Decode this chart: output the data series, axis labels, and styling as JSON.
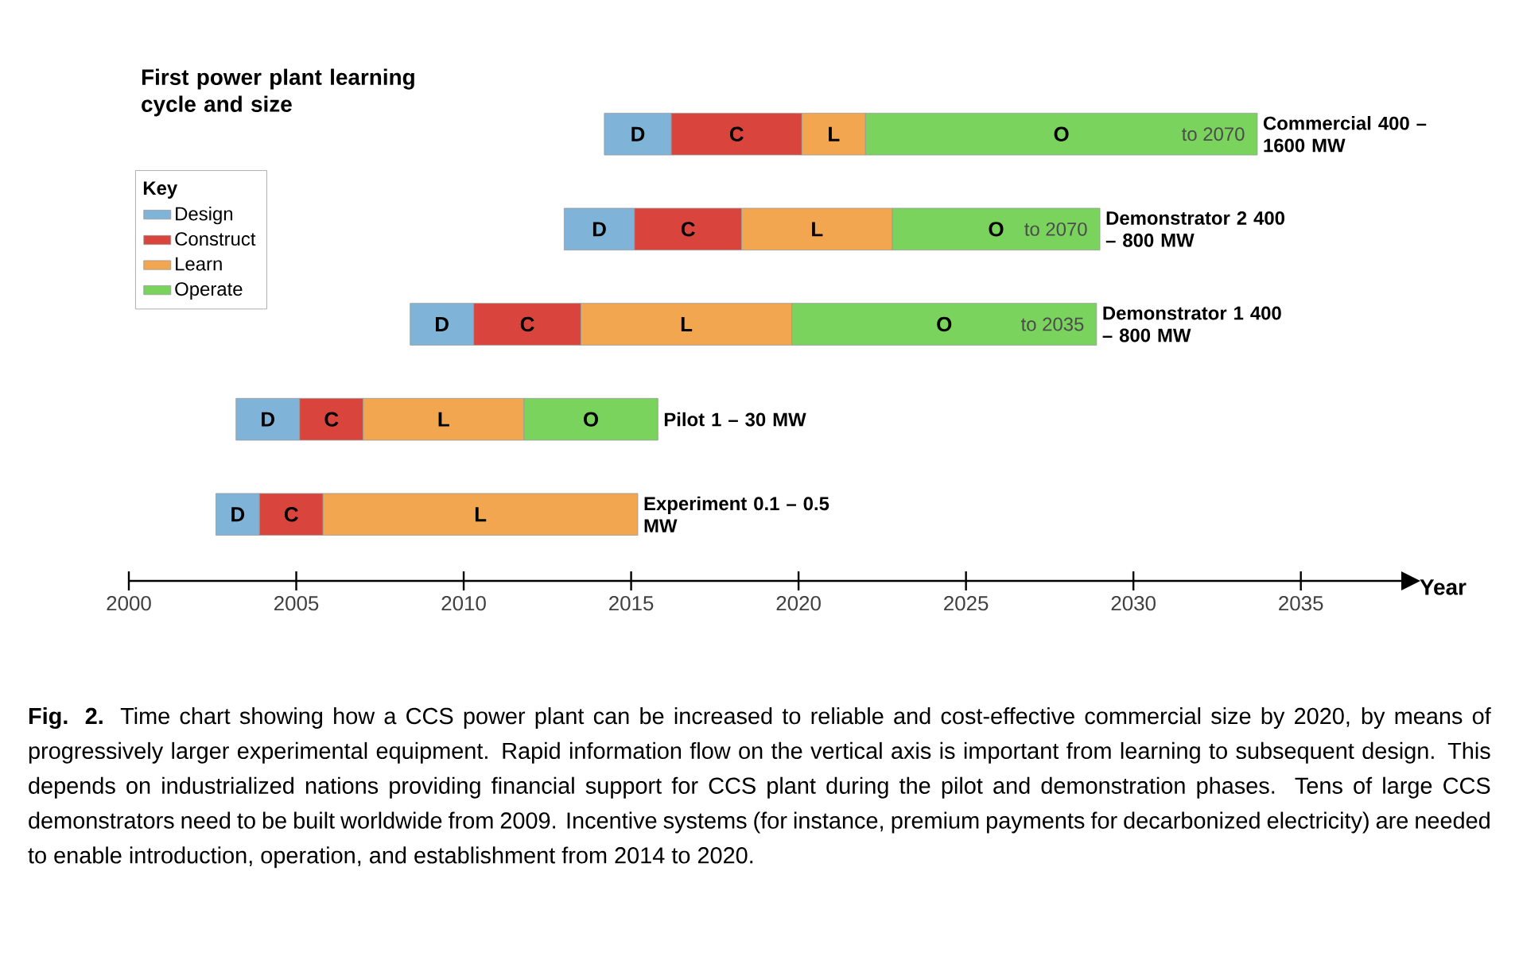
{
  "chart_data": {
    "type": "bar",
    "orientation": "horizontal",
    "title": "First power plant learning cycle and size",
    "xlabel": "Year",
    "legend_title": "Key",
    "legend": "top left",
    "categories": [
      "Commercial 400 – 1600 MW",
      "Demonstrator 2 400 – 800 MW",
      "Demonstrator 1 400 – 800 MW",
      "Pilot 1 – 30 MW",
      "Experiment 0.1 – 0.5 MW"
    ],
    "series": [
      {
        "name": "Design",
        "color": "#7fb3d8",
        "base": [
          2014.2,
          2013.0,
          2008.4,
          2003.2,
          2002.6
        ],
        "values": [
          2.0,
          2.1,
          1.9,
          1.9,
          1.3
        ],
        "value_labels": [
          "D",
          "D",
          "D",
          "D",
          "D"
        ]
      },
      {
        "name": "Construct",
        "color": "#d9453d",
        "base": [
          2016.2,
          2015.1,
          2010.3,
          2005.1,
          2003.9
        ],
        "values": [
          3.9,
          3.2,
          3.2,
          1.9,
          1.9
        ],
        "value_labels": [
          "C",
          "C",
          "C",
          "C",
          "C"
        ]
      },
      {
        "name": "Learn",
        "color": "#f2a650",
        "base": [
          2020.1,
          2018.3,
          2013.5,
          2007.0,
          2005.8
        ],
        "values": [
          1.9,
          4.5,
          6.3,
          4.8,
          9.4
        ],
        "value_labels": [
          "L",
          "L",
          "L",
          "L",
          "L"
        ]
      },
      {
        "name": "Operate",
        "color": "#79d35c",
        "base": [
          2022.0,
          2022.8,
          2019.8,
          2011.8,
          null
        ],
        "values": [
          11.7,
          6.2,
          9.1,
          4.0,
          null
        ],
        "value_labels": [
          "O",
          "O",
          "O",
          "O",
          null
        ]
      }
    ],
    "xlim": [
      2000,
      2038
    ],
    "xticks": [
      2000,
      2005,
      2010,
      2015,
      2020,
      2025,
      2030,
      2035
    ],
    "annotations": [
      "to 2070",
      "to 2070",
      "to 2035",
      "**Fig. 2.** Time chart showing how a CCS power plant can be increased to reliable and cost-effective commercial size by 2020, by means of progressively larger experimental equipment. Rapid information flow on the vertical axis is important from learning to subsequent design. This depends on industrialized nations providing financial support for CCS plant during the pilot and demonstration phases. Tens of large CCS demonstrators need to be built worldwide from 2009. Incentive systems (for instance, premium payments for decarbonized electricity) are needed to enable introduction, operation, and establishment from 2014 to 2020."
    ]
  }
}
